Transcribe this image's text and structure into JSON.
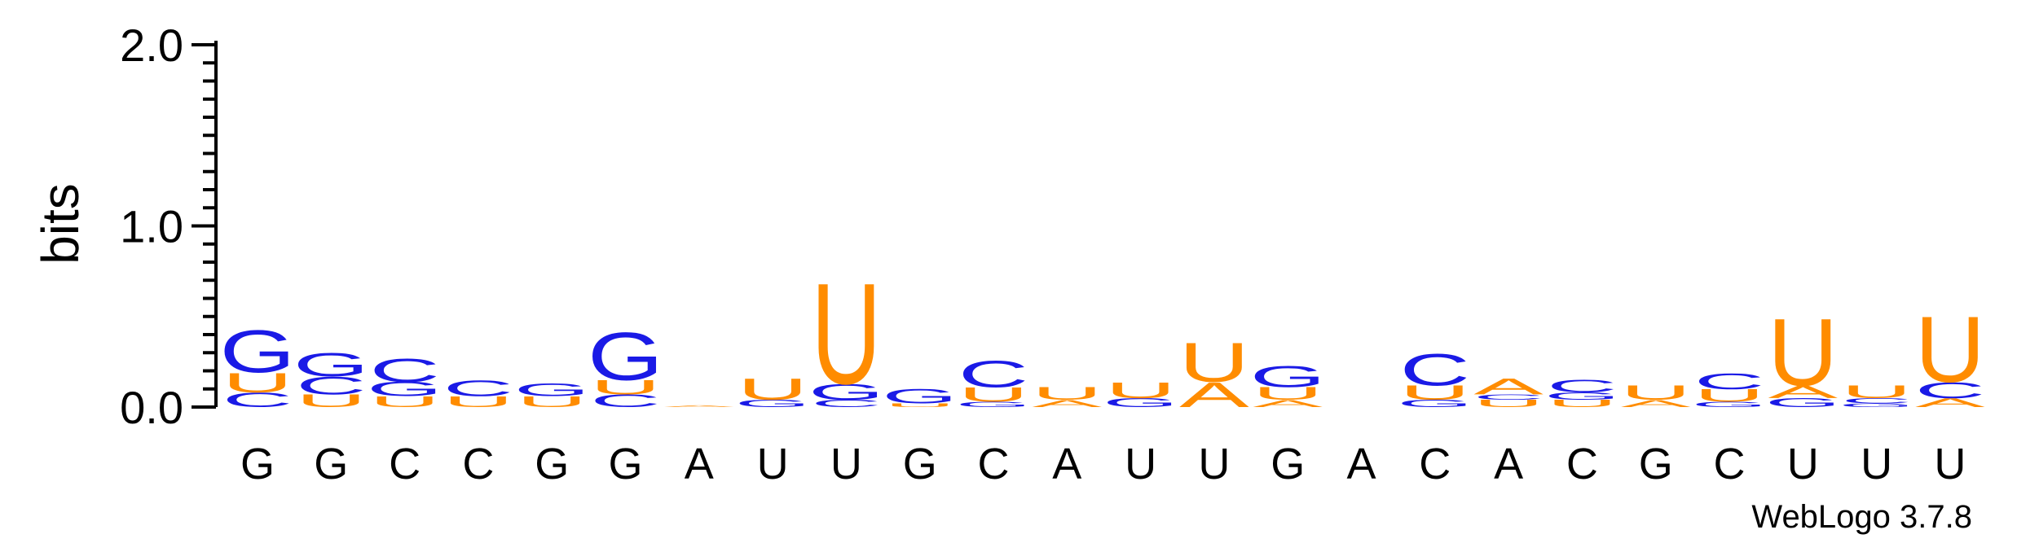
{
  "chart_data": {
    "type": "sequence-logo",
    "ylabel": "bits",
    "ylim": [
      0,
      2
    ],
    "yticks": [
      "0.0",
      "1.0",
      "2.0"
    ],
    "colors": {
      "G": "#1a1ae6",
      "C": "#1a1ae6",
      "U": "#ff8c00",
      "A": "#ff8c00"
    },
    "positions": [
      {
        "label": "G",
        "stack": [
          {
            "letter": "C",
            "bits": 0.08
          },
          {
            "letter": "U",
            "bits": 0.11
          },
          {
            "letter": "G",
            "bits": 0.24
          }
        ]
      },
      {
        "label": "G",
        "stack": [
          {
            "letter": "U",
            "bits": 0.07
          },
          {
            "letter": "C",
            "bits": 0.1
          },
          {
            "letter": "G",
            "bits": 0.13
          }
        ]
      },
      {
        "label": "C",
        "stack": [
          {
            "letter": "U",
            "bits": 0.06
          },
          {
            "letter": "G",
            "bits": 0.08
          },
          {
            "letter": "C",
            "bits": 0.13
          }
        ]
      },
      {
        "label": "C",
        "stack": [
          {
            "letter": "U",
            "bits": 0.06
          },
          {
            "letter": "C",
            "bits": 0.09
          }
        ]
      },
      {
        "label": "G",
        "stack": [
          {
            "letter": "U",
            "bits": 0.06
          },
          {
            "letter": "G",
            "bits": 0.07
          }
        ]
      },
      {
        "label": "G",
        "stack": [
          {
            "letter": "C",
            "bits": 0.07
          },
          {
            "letter": "U",
            "bits": 0.08
          },
          {
            "letter": "G",
            "bits": 0.27
          }
        ]
      },
      {
        "label": "A",
        "stack": [
          {
            "letter": "A",
            "bits": 0.01
          }
        ]
      },
      {
        "label": "U",
        "stack": [
          {
            "letter": "G",
            "bits": 0.04
          },
          {
            "letter": "U",
            "bits": 0.12
          }
        ]
      },
      {
        "label": "U",
        "stack": [
          {
            "letter": "C",
            "bits": 0.04
          },
          {
            "letter": "G",
            "bits": 0.09
          },
          {
            "letter": "U",
            "bits": 0.57
          }
        ]
      },
      {
        "label": "G",
        "stack": [
          {
            "letter": "U",
            "bits": 0.02
          },
          {
            "letter": "G",
            "bits": 0.08
          }
        ]
      },
      {
        "label": "C",
        "stack": [
          {
            "letter": "G",
            "bits": 0.03
          },
          {
            "letter": "U",
            "bits": 0.08
          },
          {
            "letter": "C",
            "bits": 0.15
          }
        ]
      },
      {
        "label": "A",
        "stack": [
          {
            "letter": "A",
            "bits": 0.04
          },
          {
            "letter": "U",
            "bits": 0.07
          }
        ]
      },
      {
        "label": "U",
        "stack": [
          {
            "letter": "G",
            "bits": 0.05
          },
          {
            "letter": "U",
            "bits": 0.09
          }
        ]
      },
      {
        "label": "U",
        "stack": [
          {
            "letter": "A",
            "bits": 0.14
          },
          {
            "letter": "U",
            "bits": 0.22
          }
        ]
      },
      {
        "label": "G",
        "stack": [
          {
            "letter": "A",
            "bits": 0.04
          },
          {
            "letter": "U",
            "bits": 0.07
          },
          {
            "letter": "G",
            "bits": 0.12
          }
        ]
      },
      {
        "label": "A",
        "stack": []
      },
      {
        "label": "C",
        "stack": [
          {
            "letter": "G",
            "bits": 0.04
          },
          {
            "letter": "U",
            "bits": 0.08
          },
          {
            "letter": "C",
            "bits": 0.18
          }
        ]
      },
      {
        "label": "A",
        "stack": [
          {
            "letter": "U",
            "bits": 0.04
          },
          {
            "letter": "C",
            "bits": 0.03
          },
          {
            "letter": "A",
            "bits": 0.09
          }
        ]
      },
      {
        "label": "C",
        "stack": [
          {
            "letter": "U",
            "bits": 0.04
          },
          {
            "letter": "G",
            "bits": 0.04
          },
          {
            "letter": "C",
            "bits": 0.07
          }
        ]
      },
      {
        "label": "G",
        "stack": [
          {
            "letter": "A",
            "bits": 0.04
          },
          {
            "letter": "U",
            "bits": 0.08
          }
        ]
      },
      {
        "label": "C",
        "stack": [
          {
            "letter": "G",
            "bits": 0.03
          },
          {
            "letter": "U",
            "bits": 0.07
          },
          {
            "letter": "C",
            "bits": 0.09
          }
        ]
      },
      {
        "label": "U",
        "stack": [
          {
            "letter": "G",
            "bits": 0.05
          },
          {
            "letter": "A",
            "bits": 0.07
          },
          {
            "letter": "U",
            "bits": 0.38
          }
        ]
      },
      {
        "label": "U",
        "stack": [
          {
            "letter": "G",
            "bits": 0.02
          },
          {
            "letter": "C",
            "bits": 0.03
          },
          {
            "letter": "U",
            "bits": 0.07
          }
        ]
      },
      {
        "label": "U",
        "stack": [
          {
            "letter": "A",
            "bits": 0.05
          },
          {
            "letter": "C",
            "bits": 0.09
          },
          {
            "letter": "U",
            "bits": 0.37
          }
        ]
      }
    ]
  },
  "credit": "WebLogo 3.7.8"
}
